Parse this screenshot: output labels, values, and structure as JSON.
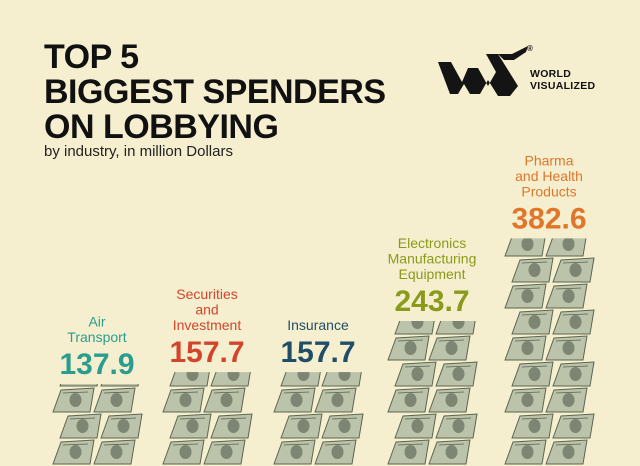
{
  "header": {
    "title_lines": [
      "TOP 5",
      "BIGGEST SPENDERS",
      "ON LOBBYING"
    ],
    "subtitle": "by industry, in million Dollars"
  },
  "brand": {
    "lines": [
      "WORLD",
      "VISUALIZED"
    ],
    "registered": "®"
  },
  "chart_data": {
    "type": "bar",
    "title": "TOP 5 BIGGEST SPENDERS ON LOBBYING",
    "subtitle": "by industry, in million Dollars",
    "categories": [
      "Air Transport",
      "Securities and Investment",
      "Insurance",
      "Electronics Manufacturing Equipment",
      "Pharma and Health Products"
    ],
    "label_lines": [
      [
        "Air",
        "Transport"
      ],
      [
        "Securities",
        "and",
        "Investment"
      ],
      [
        "Insurance"
      ],
      [
        "Electronics",
        "Manufacturing",
        "Equipment"
      ],
      [
        "Pharma",
        "and Health",
        "Products"
      ]
    ],
    "values": [
      137.9,
      157.7,
      157.7,
      243.7,
      382.6
    ],
    "value_labels": [
      "137.9",
      "157.7",
      "157.7",
      "243.7",
      "382.6"
    ],
    "colors": [
      "#2a9d8f",
      "#d2452c",
      "#1f4e66",
      "#8a9a1b",
      "#e0762a"
    ],
    "bar_style": "stacks of dollar bills",
    "unit": "million Dollars",
    "grid": false,
    "legend": "none"
  }
}
